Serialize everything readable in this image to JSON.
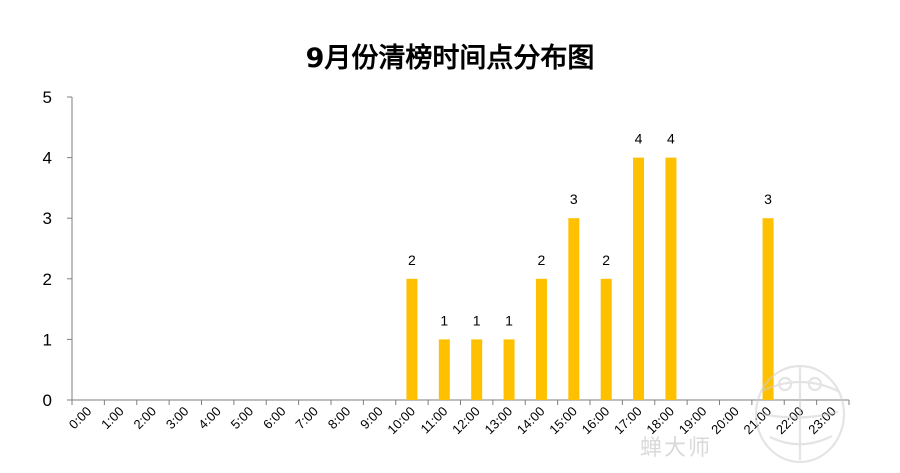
{
  "chart_data": {
    "type": "bar",
    "title": "9月份清榜时间点分布图",
    "xlabel": "",
    "ylabel": "",
    "categories": [
      "0:00",
      "1:00",
      "2:00",
      "3:00",
      "4:00",
      "5:00",
      "6:00",
      "7:00",
      "8:00",
      "9:00",
      "10:00",
      "11:00",
      "12:00",
      "13:00",
      "14:00",
      "15:00",
      "16:00",
      "17:00",
      "18:00",
      "19:00",
      "20:00",
      "21:00",
      "22:00",
      "23:00"
    ],
    "values": [
      0,
      0,
      0,
      0,
      0,
      0,
      0,
      0,
      0,
      0,
      2,
      1,
      1,
      1,
      2,
      3,
      2,
      4,
      4,
      0,
      0,
      3,
      0,
      0
    ],
    "data_labels": [
      "",
      "",
      "",
      "",
      "",
      "",
      "",
      "",
      "",
      "",
      "2",
      "1",
      "1",
      "1",
      "2",
      "3",
      "2",
      "4",
      "4",
      "",
      "",
      "3",
      "",
      ""
    ],
    "ylim": [
      0,
      5
    ],
    "yticks": [
      0,
      1,
      2,
      3,
      4,
      5
    ],
    "grid": false,
    "legend": "none"
  },
  "colors": {
    "bar": "#ffc000",
    "axis": "#7f7f7f",
    "text": "#000000"
  },
  "watermark": {
    "text": "蝉大师",
    "icon": "cicada-logo-icon"
  }
}
